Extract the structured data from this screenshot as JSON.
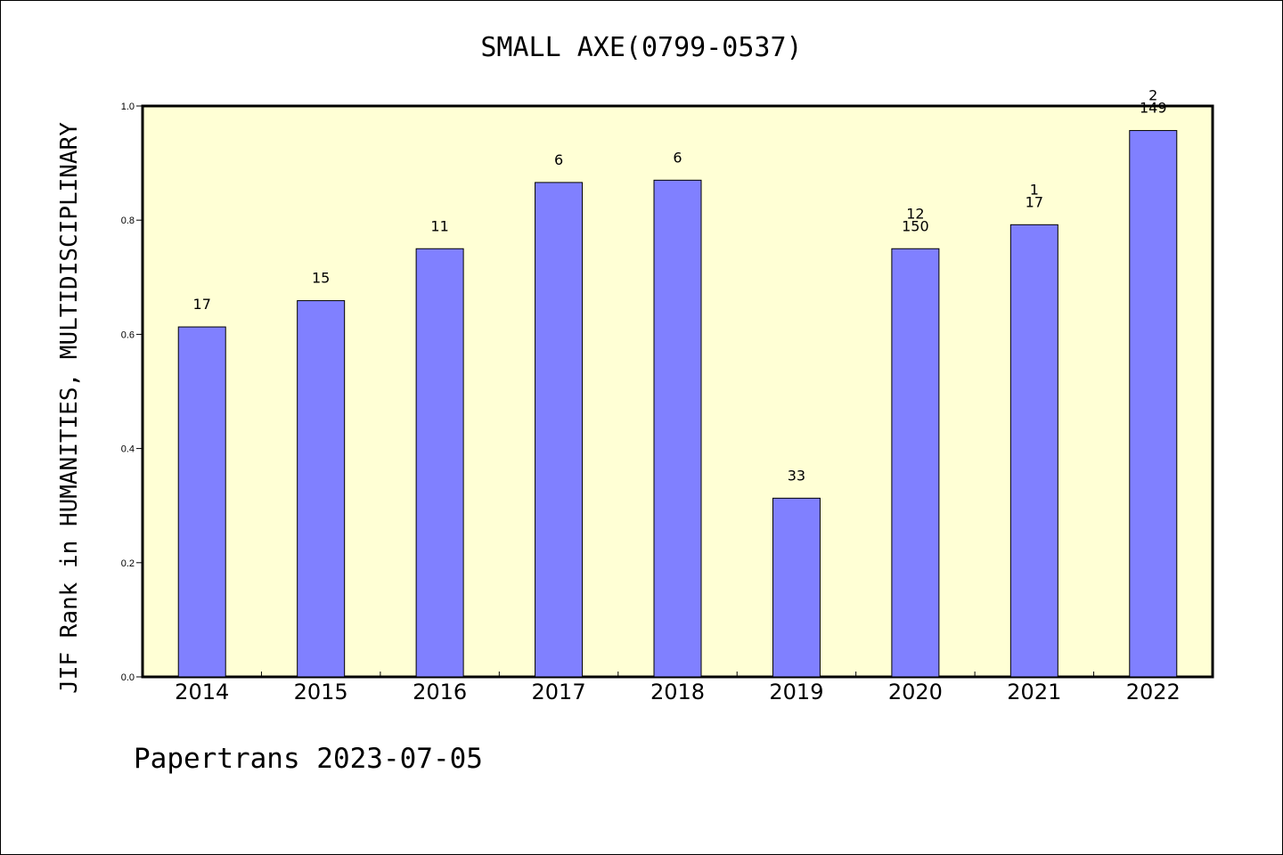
{
  "chart_data": {
    "type": "bar",
    "title": "SMALL AXE(0799-0537)",
    "ylabel": "JIF Rank in HUMANITIES, MULTIDISCIPLINARY",
    "xlabel": "",
    "ylim": [
      0,
      1.0
    ],
    "yticks": [
      "0.0",
      "0.2",
      "0.4",
      "0.6",
      "0.8",
      "1.0"
    ],
    "categories": [
      "2014",
      "2015",
      "2016",
      "2017",
      "2018",
      "2019",
      "2020",
      "2021",
      "2022"
    ],
    "values": [
      0.613,
      0.659,
      0.75,
      0.866,
      0.87,
      0.313,
      0.75,
      0.792,
      0.957
    ],
    "bar_labels": [
      [
        "17"
      ],
      [
        "15"
      ],
      [
        "11"
      ],
      [
        "6"
      ],
      [
        "6"
      ],
      [
        "33"
      ],
      [
        "12",
        "150"
      ],
      [
        "1",
        "17"
      ],
      [
        "2",
        "149"
      ]
    ],
    "grid": false,
    "colors": {
      "bar_fill": "#8080ff",
      "plot_background": "#ffffd5"
    }
  },
  "footer": "Papertrans 2023-07-05"
}
